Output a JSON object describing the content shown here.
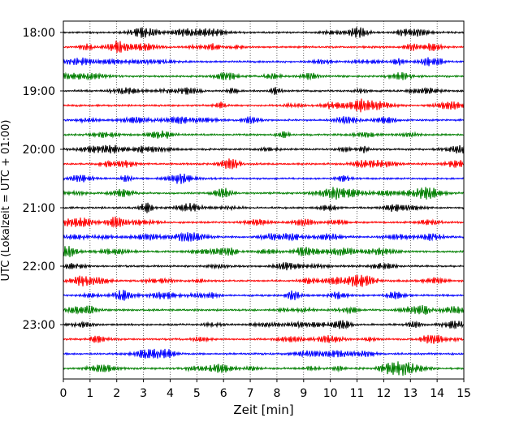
{
  "chart_data": {
    "type": "line",
    "xlabel": "Zeit  [min]",
    "ylabel": "UTC (Lokalzeit = UTC + 01:00)",
    "xlim": [
      0,
      15
    ],
    "x_ticks": [
      "0",
      "1",
      "2",
      "3",
      "4",
      "5",
      "6",
      "7",
      "8",
      "9",
      "10",
      "11",
      "12",
      "13",
      "14",
      "15"
    ],
    "y_ticks": [
      "18:00",
      "19:00",
      "20:00",
      "21:00",
      "22:00",
      "23:00"
    ],
    "grid": "vertical dotted",
    "trace_interval_minutes": 15,
    "trace_start": "18:00",
    "trace_count": 24,
    "trace_colors": [
      "#000000",
      "#ff0000",
      "#0000ff",
      "#007f00"
    ]
  }
}
